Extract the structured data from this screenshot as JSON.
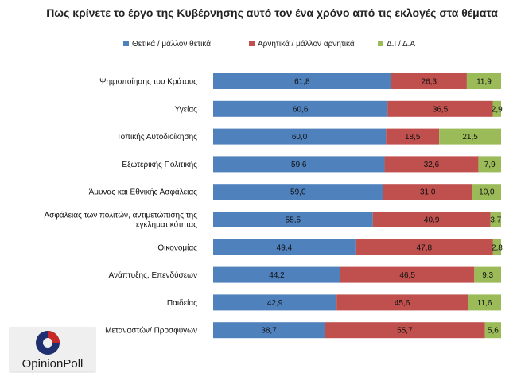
{
  "title": "Πως κρίνετε το έργο της Κυβέρνησης αυτό τον ένα χρόνο από τις εκλογές στα θέματα",
  "logo": {
    "text": "OpinionPoll"
  },
  "chart_data": {
    "type": "bar",
    "orientation": "horizontal",
    "stacked": "100%",
    "title": "Πως κρίνετε το έργο της Κυβέρνησης αυτό τον ένα χρόνο από τις εκλογές στα θέματα",
    "legend_position": "top",
    "categories": [
      "Ψηφιοποίησης του Κράτους",
      "Υγείας",
      "Τοπικής Αυτοδιοίκησης",
      "Εξωτερικής Πολιτικής",
      "Άμυνας και Εθνικής Ασφάλειας",
      "Ασφάλειας των πολιτών, αντιμετώπισης της εγκληματικότητας",
      "Οικονομίας",
      "Ανάπτυξης, Επενδύσεων",
      "Παιδείας",
      "Μεταναστών/ Προσφύγων"
    ],
    "series": [
      {
        "name": "Θετικά / μάλλον θετικά",
        "color": "#4f81bd",
        "values": [
          61.8,
          60.6,
          60.0,
          59.6,
          59.0,
          55.5,
          49.4,
          44.2,
          42.9,
          38.7
        ],
        "labels": [
          "61,8",
          "60,6",
          "60,0",
          "59,6",
          "59,0",
          "55,5",
          "49,4",
          "44,2",
          "42,9",
          "38,7"
        ]
      },
      {
        "name": "Αρνητικά / μάλλον αρνητικά",
        "color": "#c0504d",
        "values": [
          26.3,
          36.5,
          18.5,
          32.6,
          31.0,
          40.9,
          47.8,
          46.5,
          45.6,
          55.7
        ],
        "labels": [
          "26,3",
          "36,5",
          "18,5",
          "32,6",
          "31,0",
          "40,9",
          "47,8",
          "46,5",
          "45,6",
          "55,7"
        ]
      },
      {
        "name": "Δ.Γ/ Δ.Α",
        "color": "#9bbb59",
        "values": [
          11.9,
          2.9,
          21.5,
          7.9,
          10.0,
          3.7,
          2.8,
          9.3,
          11.6,
          5.6
        ],
        "labels": [
          "11,9",
          "2,9",
          "21,5",
          "7,9",
          "10,0",
          "3,7",
          "2,8",
          "9,3",
          "11,6",
          "5,6"
        ]
      }
    ]
  }
}
